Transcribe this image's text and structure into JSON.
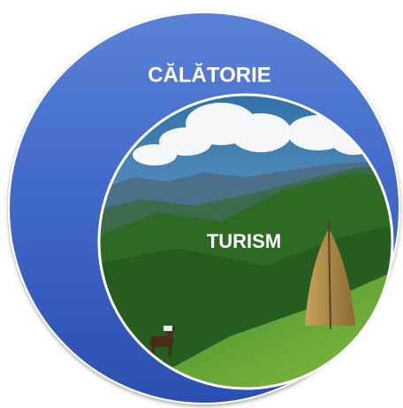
{
  "outer": {
    "label": "CĂLĂTORIE"
  },
  "inner": {
    "label": "TURISM"
  }
}
